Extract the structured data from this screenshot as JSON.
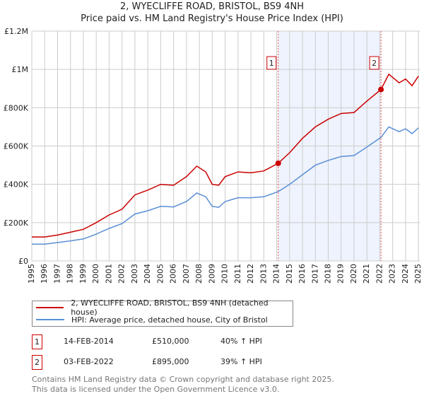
{
  "chart_data": {
    "type": "line",
    "title": "2, WYECLIFFE ROAD, BRISTOL, BS9 4NH",
    "subtitle": "Price paid vs. HM Land Registry's House Price Index (HPI)",
    "xlim": [
      1995,
      2025.1
    ],
    "ylim": [
      0,
      1200000
    ],
    "y_ticks": [
      {
        "v": 0,
        "label": "£0"
      },
      {
        "v": 200000,
        "label": "£200K"
      },
      {
        "v": 400000,
        "label": "£400K"
      },
      {
        "v": 600000,
        "label": "£600K"
      },
      {
        "v": 800000,
        "label": "£800K"
      },
      {
        "v": 1000000,
        "label": "£1M"
      },
      {
        "v": 1200000,
        "label": "£1.2M"
      }
    ],
    "x_ticks": [
      "1995",
      "1996",
      "1997",
      "1998",
      "1999",
      "2000",
      "2001",
      "2002",
      "2003",
      "2004",
      "2005",
      "2006",
      "2007",
      "2008",
      "2009",
      "2010",
      "2011",
      "2012",
      "2013",
      "2014",
      "2015",
      "2016",
      "2017",
      "2018",
      "2019",
      "2020",
      "2021",
      "2022",
      "2023",
      "2024",
      "2025"
    ],
    "grid": true,
    "series": [
      {
        "name": "2, WYECLIFFE ROAD, BRISTOL, BS9 4NH (detached house)",
        "color": "#cc0000",
        "x": [
          1995,
          1996,
          1997,
          1998,
          1999,
          2000,
          2001,
          2002,
          2003,
          2004,
          2005,
          2006,
          2007,
          2007.8,
          2008.5,
          2009,
          2009.5,
          2010,
          2011,
          2012,
          2013,
          2014.12,
          2015,
          2016,
          2017,
          2018,
          2019,
          2020,
          2021,
          2022.09,
          2022.7,
          2023.5,
          2024,
          2024.5,
          2025
        ],
        "y": [
          125000,
          125000,
          135000,
          150000,
          165000,
          200000,
          240000,
          270000,
          345000,
          370000,
          400000,
          395000,
          440000,
          495000,
          465000,
          400000,
          395000,
          440000,
          465000,
          460000,
          470000,
          510000,
          565000,
          640000,
          700000,
          740000,
          770000,
          775000,
          835000,
          895000,
          975000,
          930000,
          950000,
          915000,
          965000
        ]
      },
      {
        "name": "HPI: Average price, detached house, City of Bristol",
        "color": "#5b8fd6",
        "x": [
          1995,
          1996,
          1997,
          1998,
          1999,
          2000,
          2001,
          2002,
          2003,
          2004,
          2005,
          2006,
          2007,
          2007.8,
          2008.5,
          2009,
          2009.5,
          2010,
          2011,
          2012,
          2013,
          2014.12,
          2015,
          2016,
          2017,
          2018,
          2019,
          2020,
          2021,
          2022.09,
          2022.7,
          2023.5,
          2024,
          2024.5,
          2025
        ],
        "y": [
          88000,
          88000,
          96000,
          105000,
          115000,
          140000,
          170000,
          195000,
          245000,
          262000,
          285000,
          282000,
          310000,
          355000,
          335000,
          285000,
          280000,
          310000,
          330000,
          330000,
          335000,
          362000,
          400000,
          450000,
          500000,
          525000,
          545000,
          550000,
          595000,
          645000,
          700000,
          675000,
          690000,
          665000,
          695000
        ]
      }
    ],
    "sales": [
      {
        "id": "1",
        "x": 2014.12,
        "y": 510000,
        "date": "14-FEB-2014",
        "price": "£510,000",
        "hpi": "40% ↑ HPI"
      },
      {
        "id": "2",
        "x": 2022.09,
        "y": 895000,
        "date": "03-FEB-2022",
        "price": "£895,000",
        "hpi": "39% ↑ HPI"
      }
    ],
    "legend_placement": "below"
  },
  "footer": {
    "line1": "Contains HM Land Registry data © Crown copyright and database right 2025.",
    "line2": "This data is licensed under the Open Government Licence v3.0."
  }
}
